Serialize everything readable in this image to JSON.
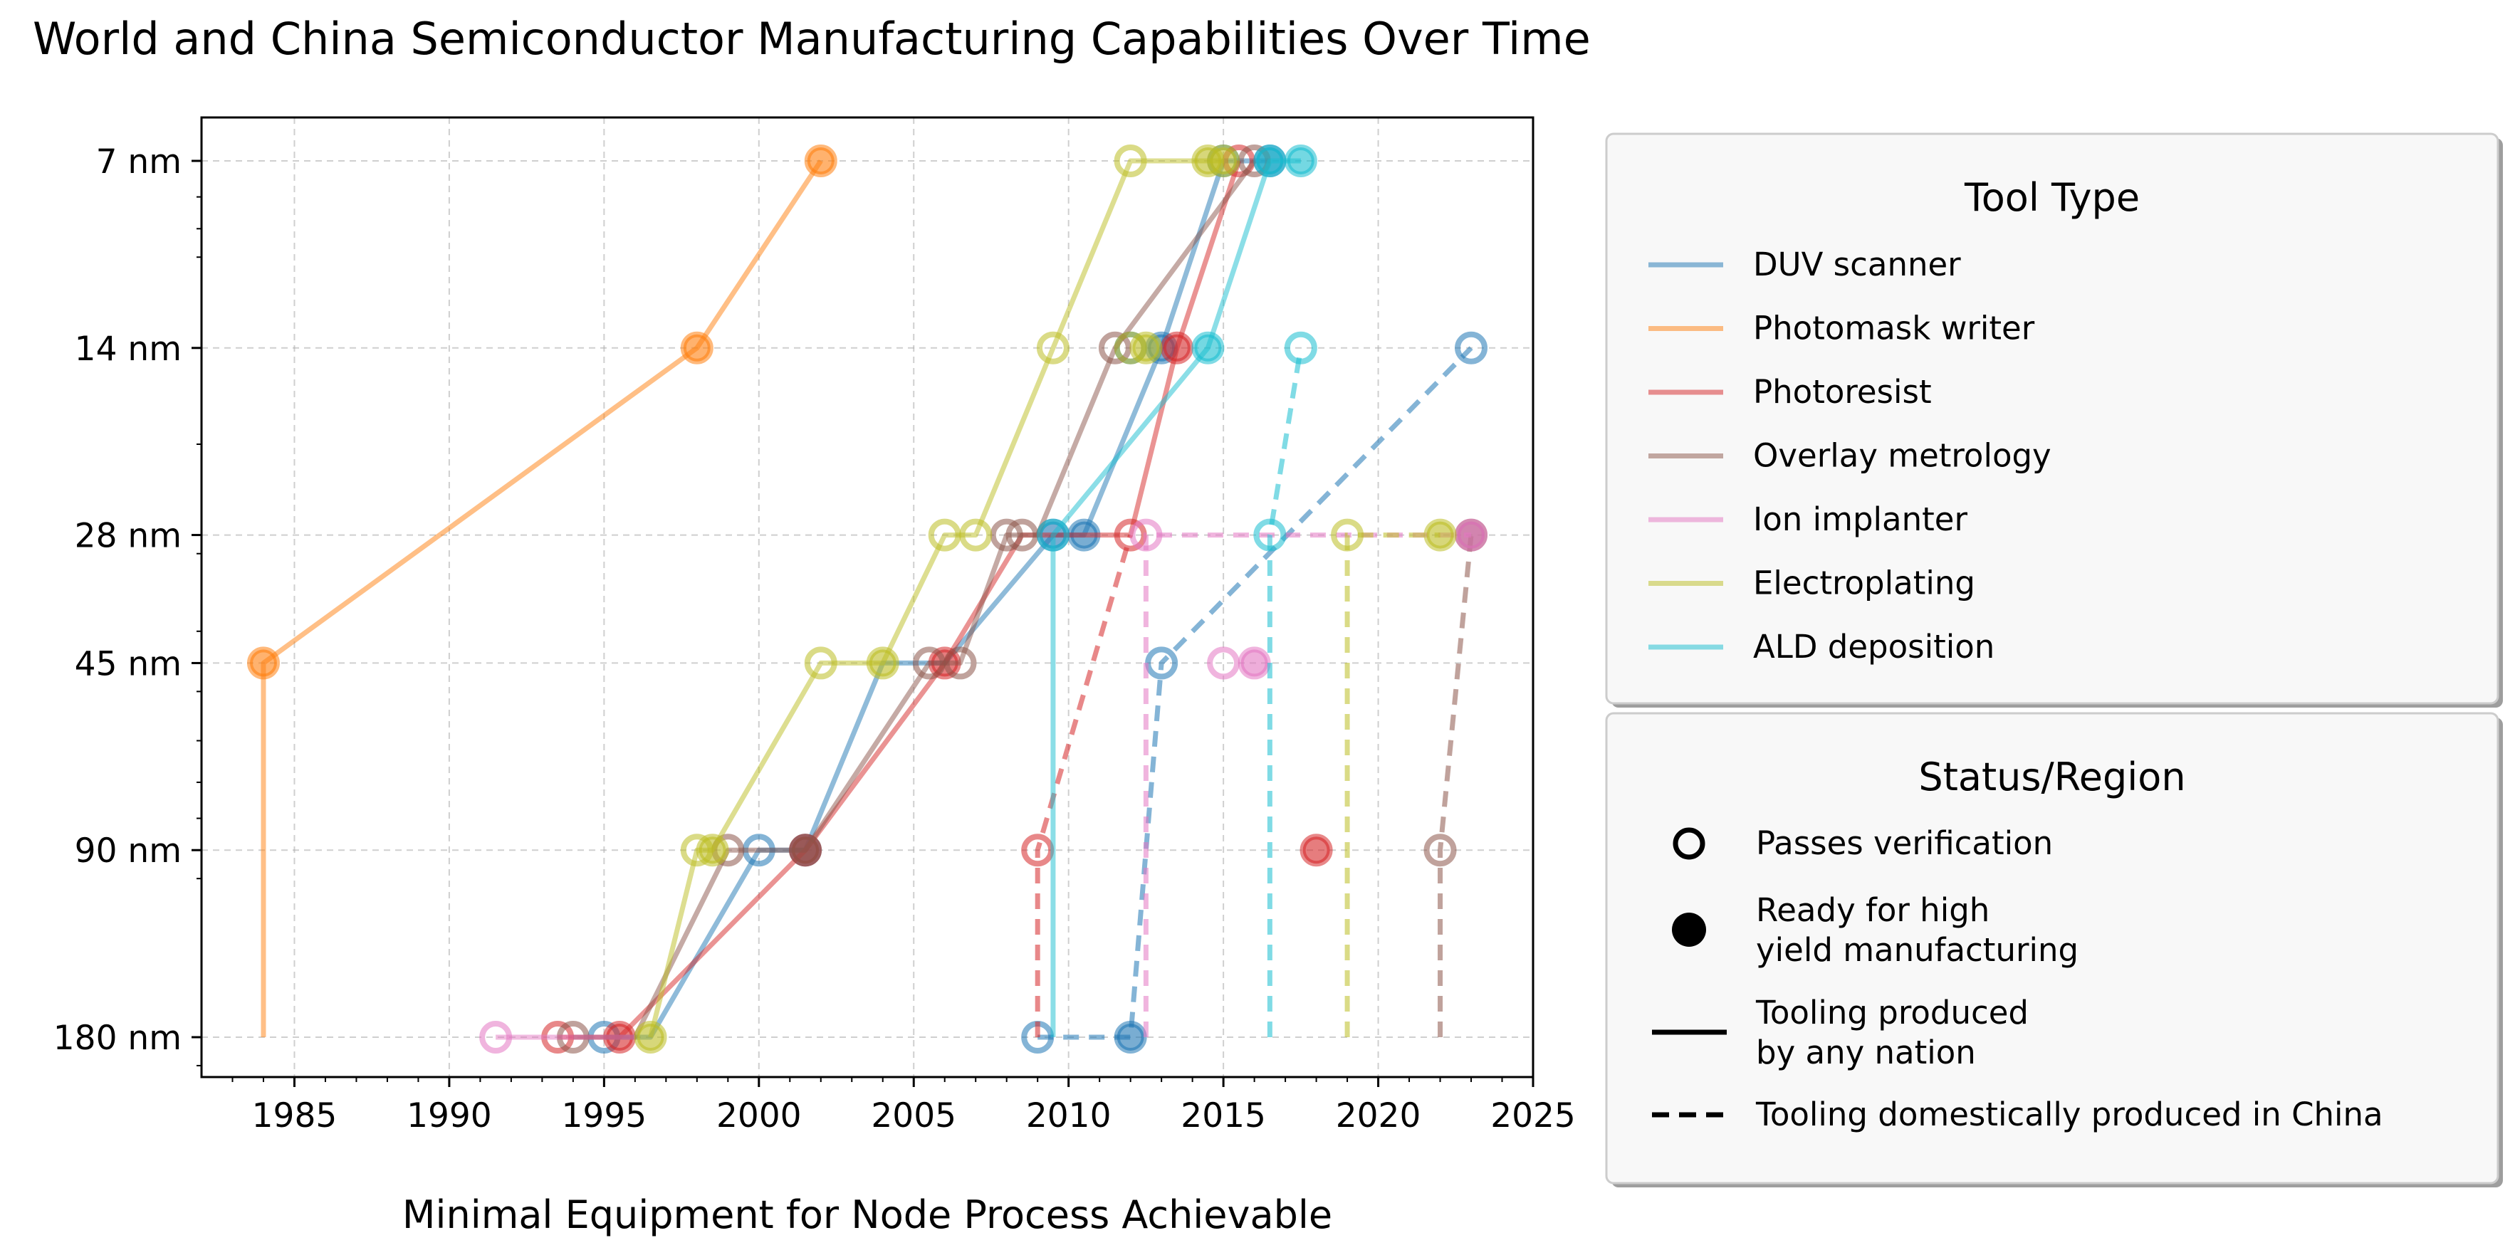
{
  "chart_data": {
    "type": "line",
    "title": "World and China Semiconductor Manufacturing Capabilities Over Time",
    "xlabel": "Minimal Equipment for Node Process Achievable",
    "ylabel": "",
    "xlim": [
      1982,
      2025
    ],
    "x_ticks": [
      1985,
      1990,
      1995,
      2000,
      2005,
      2010,
      2015,
      2020,
      2025
    ],
    "y_scale": "log",
    "y_ticks": [
      {
        "value": 7,
        "label": "7 nm"
      },
      {
        "value": 14,
        "label": "14 nm"
      },
      {
        "value": 28,
        "label": "28 nm"
      },
      {
        "value": 45,
        "label": "45 nm"
      },
      {
        "value": 90,
        "label": "90 nm"
      },
      {
        "value": 180,
        "label": "180 nm"
      }
    ],
    "ylim_nm": [
      6,
      210
    ],
    "grid": true,
    "legend_placement": "right",
    "legend_tool_title": "Tool Type",
    "legend_status_title": "Status/Region",
    "status_legend": [
      {
        "kind": "open-marker",
        "label": "Passes verification"
      },
      {
        "kind": "filled-marker",
        "label": "Ready for high\nyield manufacturing"
      },
      {
        "kind": "solid-line",
        "label": "Tooling produced\nby any nation"
      },
      {
        "kind": "dashed-line",
        "label": "Tooling domestically produced in China"
      }
    ],
    "series": [
      {
        "name": "DUV scanner",
        "color": "#1f77b4",
        "world": [
          [
            1995,
            180,
            "open"
          ],
          [
            2000,
            90,
            "open"
          ],
          [
            2001.5,
            90,
            "filled"
          ],
          [
            2012,
            14,
            "open"
          ],
          [
            2013,
            14,
            "filled"
          ],
          [
            2015,
            7,
            "open"
          ],
          [
            2016.5,
            7,
            "filled"
          ],
          [
            2009.5,
            28,
            "filled"
          ],
          [
            2010.5,
            28,
            "filled"
          ]
        ],
        "world_line": [
          [
            1995,
            180
          ],
          [
            1996.5,
            180
          ],
          [
            2000,
            90
          ],
          [
            2001.5,
            90
          ],
          [
            2004,
            45
          ],
          [
            2006,
            45
          ],
          [
            2009.5,
            28
          ],
          [
            2010.5,
            28
          ],
          [
            2013,
            14
          ],
          [
            2015,
            7
          ],
          [
            2016.5,
            7
          ]
        ],
        "china": [
          [
            2009,
            180,
            "open"
          ],
          [
            2012,
            180,
            "filled"
          ],
          [
            2013,
            45,
            "open"
          ],
          [
            2023,
            14,
            "open"
          ]
        ],
        "china_line": [
          [
            2009,
            180
          ],
          [
            2012,
            180
          ],
          [
            2013,
            45
          ],
          [
            2023,
            14
          ]
        ]
      },
      {
        "name": "Photomask writer",
        "color": "#ff7f0e",
        "world": [
          [
            1984,
            45,
            "filled"
          ],
          [
            1998,
            14,
            "filled"
          ],
          [
            2002,
            7,
            "filled"
          ]
        ],
        "world_line": [
          [
            1984,
            180
          ],
          [
            1984,
            45
          ],
          [
            1998,
            14
          ],
          [
            2002,
            7
          ]
        ],
        "china": [],
        "china_line": []
      },
      {
        "name": "Photoresist",
        "color": "#d62728",
        "world": [
          [
            1993.5,
            180,
            "open"
          ],
          [
            1995.5,
            180,
            "filled"
          ],
          [
            2001.5,
            90,
            "filled"
          ],
          [
            2006,
            45,
            "filled"
          ],
          [
            2012,
            28,
            "open"
          ],
          [
            2013.5,
            14,
            "filled"
          ],
          [
            2015.5,
            7,
            "open"
          ]
        ],
        "world_line": [
          [
            1993.5,
            180
          ],
          [
            1995.5,
            180
          ],
          [
            2001.5,
            90
          ],
          [
            2006,
            45
          ],
          [
            2008.5,
            28
          ],
          [
            2012,
            28
          ],
          [
            2013.5,
            14
          ],
          [
            2015.5,
            7
          ]
        ],
        "china": [
          [
            2009,
            90,
            "open"
          ],
          [
            2018,
            90,
            "filled"
          ]
        ],
        "china_line": [
          [
            2009,
            180
          ],
          [
            2009,
            90
          ],
          [
            2012,
            28
          ]
        ]
      },
      {
        "name": "Overlay metrology",
        "color": "#8c564b",
        "world": [
          [
            1994,
            180,
            "open"
          ],
          [
            1999,
            90,
            "open"
          ],
          [
            2001.5,
            90,
            "filled"
          ],
          [
            2005.5,
            45,
            "open"
          ],
          [
            2006.5,
            45,
            "open"
          ],
          [
            2008,
            28,
            "open"
          ],
          [
            2008.5,
            28,
            "open"
          ],
          [
            2011.5,
            14,
            "open"
          ],
          [
            2016,
            7,
            "open"
          ]
        ],
        "world_line": [
          [
            1994,
            180
          ],
          [
            1996,
            180
          ],
          [
            1999,
            90
          ],
          [
            2001.5,
            90
          ],
          [
            2005.5,
            45
          ],
          [
            2006.5,
            45
          ],
          [
            2008,
            28
          ],
          [
            2009,
            28
          ],
          [
            2011.5,
            14
          ],
          [
            2016,
            7
          ]
        ],
        "china": [
          [
            2022,
            90,
            "open"
          ],
          [
            2023,
            28,
            "filled"
          ]
        ],
        "china_line": [
          [
            2022,
            180
          ],
          [
            2022,
            90
          ],
          [
            2023,
            28
          ]
        ]
      },
      {
        "name": "Ion implanter",
        "color": "#e377c2",
        "world": [
          [
            1991.5,
            180,
            "open"
          ],
          [
            2015,
            45,
            "open"
          ],
          [
            2016,
            45,
            "filled"
          ]
        ],
        "world_line": [
          [
            1991.5,
            180
          ],
          [
            1996,
            180
          ]
        ],
        "china": [
          [
            2012.5,
            28,
            "open"
          ],
          [
            2023,
            28,
            "filled"
          ]
        ],
        "china_line": [
          [
            2012.5,
            180
          ],
          [
            2012.5,
            28
          ],
          [
            2023,
            28
          ]
        ]
      },
      {
        "name": "Electroplating",
        "color": "#bcbd22",
        "world": [
          [
            1996.5,
            180,
            "filled"
          ],
          [
            1998,
            90,
            "open"
          ],
          [
            1998.5,
            90,
            "filled"
          ],
          [
            2002,
            45,
            "open"
          ],
          [
            2004,
            45,
            "filled"
          ],
          [
            2006,
            28,
            "open"
          ],
          [
            2007,
            28,
            "open"
          ],
          [
            2009.5,
            14,
            "open"
          ],
          [
            2012,
            7,
            "open"
          ],
          [
            2014.5,
            7,
            "filled"
          ],
          [
            2015,
            7,
            "filled"
          ],
          [
            2012,
            14,
            "open"
          ],
          [
            2012.5,
            14,
            "filled"
          ]
        ],
        "world_line": [
          [
            1996.5,
            180
          ],
          [
            1998,
            90
          ],
          [
            1998.5,
            90
          ],
          [
            2002,
            45
          ],
          [
            2004,
            45
          ],
          [
            2006,
            28
          ],
          [
            2007,
            28
          ],
          [
            2009.5,
            14
          ],
          [
            2012,
            7
          ],
          [
            2015,
            7
          ]
        ],
        "china": [
          [
            2019,
            28,
            "open"
          ],
          [
            2022,
            28,
            "filled"
          ]
        ],
        "china_line": [
          [
            2019,
            180
          ],
          [
            2019,
            28
          ],
          [
            2022,
            28
          ]
        ]
      },
      {
        "name": "ALD deposition",
        "color": "#17becf",
        "world": [
          [
            2009.5,
            28,
            "open"
          ],
          [
            2014.5,
            14,
            "filled"
          ],
          [
            2016.5,
            7,
            "filled"
          ],
          [
            2017.5,
            7,
            "filled"
          ]
        ],
        "world_line": [
          [
            2009.5,
            180
          ],
          [
            2009.5,
            28
          ],
          [
            2014.5,
            14
          ],
          [
            2016.5,
            7
          ],
          [
            2017.5,
            7
          ]
        ],
        "china": [
          [
            2016.5,
            28,
            "open"
          ],
          [
            2017.5,
            14,
            "open"
          ]
        ],
        "china_line": [
          [
            2016.5,
            180
          ],
          [
            2016.5,
            28
          ],
          [
            2017.5,
            14
          ]
        ]
      }
    ]
  }
}
